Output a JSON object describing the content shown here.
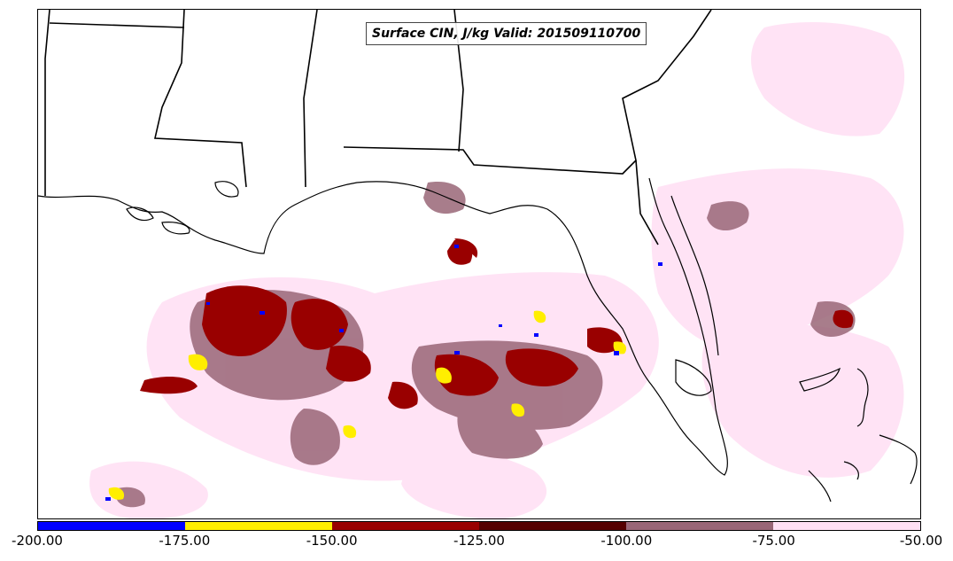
{
  "map": {
    "title": "Surface CIN, J/kg Valid: 201509110700",
    "variable": "Surface CIN",
    "units": "J/kg",
    "valid": "201509110700",
    "region": "Southeastern United States / Gulf of Mexico"
  },
  "colorbar": {
    "ticks": [
      "-200.00",
      "-175.00",
      "-150.00",
      "-125.00",
      "-100.00",
      "-75.00",
      "-50.00"
    ],
    "bins": [
      {
        "min": -200,
        "max": -175,
        "color": "#0000ff"
      },
      {
        "min": -175,
        "max": -150,
        "color": "#ffee00"
      },
      {
        "min": -150,
        "max": -125,
        "color": "#990000"
      },
      {
        "min": -125,
        "max": -100,
        "color": "#550000"
      },
      {
        "min": -100,
        "max": -75,
        "color": "#996677"
      },
      {
        "min": -75,
        "max": -50,
        "color": "#ffe0f4"
      }
    ]
  }
}
